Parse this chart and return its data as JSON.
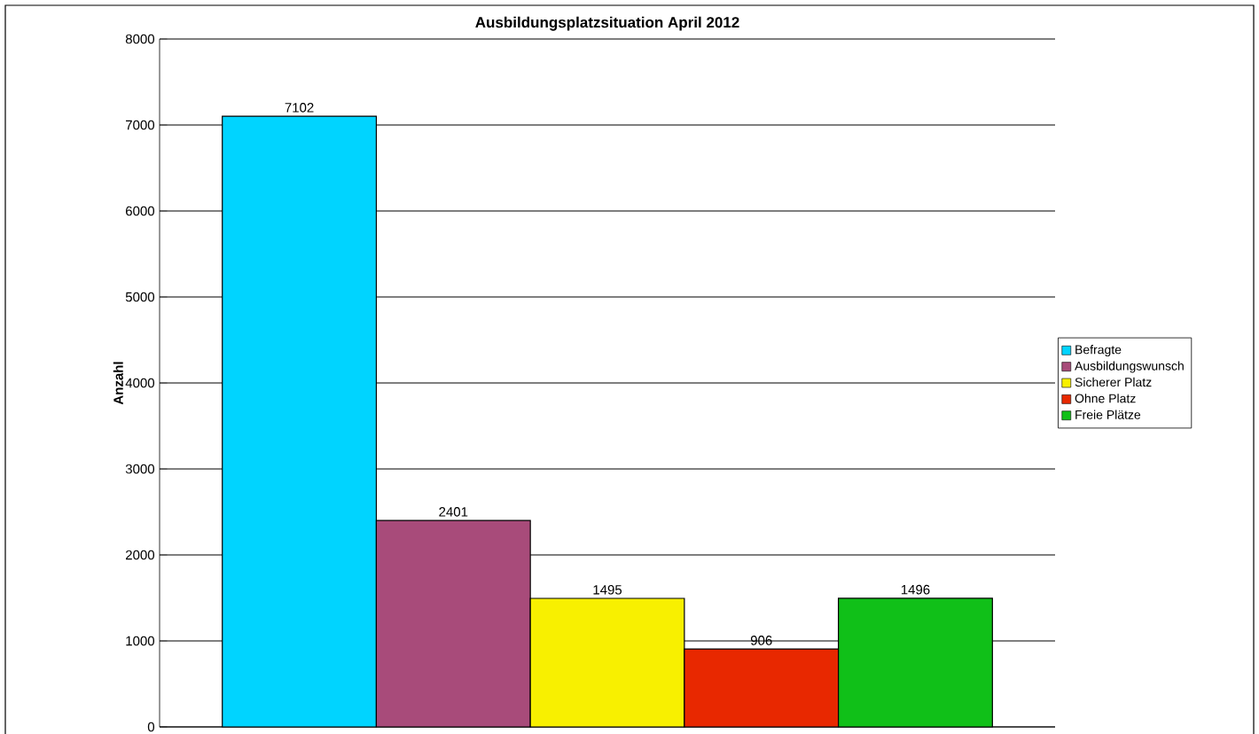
{
  "chart_data": {
    "type": "bar",
    "title": "Ausbildungsplatzsituation April 2012",
    "ylabel": "Anzahl",
    "categories": [
      null
    ],
    "series": [
      {
        "name": "Befragte",
        "color": "#00d4ff",
        "values": [
          7102
        ]
      },
      {
        "name": "Ausbildungswunsch",
        "color": "#a84b7a",
        "values": [
          2401
        ]
      },
      {
        "name": "Sicherer Platz",
        "color": "#f8f000",
        "values": [
          1495
        ]
      },
      {
        "name": "Ohne Platz",
        "color": "#e82800",
        "values": [
          906
        ]
      },
      {
        "name": "Freie Plätze",
        "color": "#10c018",
        "values": [
          1496
        ]
      }
    ],
    "ylim": [
      0,
      8000
    ],
    "yticks": [
      0,
      1000,
      2000,
      3000,
      4000,
      5000,
      6000,
      7000,
      8000
    ],
    "grid": "y",
    "legend": "right",
    "data_labels": true,
    "tick_labels": "y"
  }
}
